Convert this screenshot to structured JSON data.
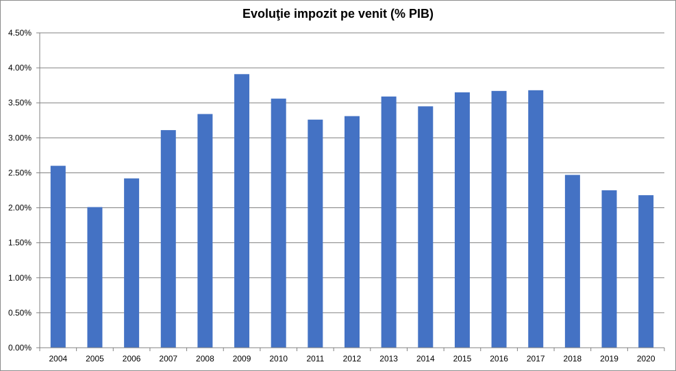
{
  "chart_data": {
    "type": "bar",
    "title": "Evoluţie impozit pe venit (% PIB)",
    "xlabel": "",
    "ylabel": "",
    "categories": [
      "2004",
      "2005",
      "2006",
      "2007",
      "2008",
      "2009",
      "2010",
      "2011",
      "2012",
      "2013",
      "2014",
      "2015",
      "2016",
      "2017",
      "2018",
      "2019",
      "2020"
    ],
    "series": [
      {
        "values": [
          2.6,
          2.01,
          2.42,
          3.11,
          3.34,
          3.91,
          3.56,
          3.26,
          3.31,
          3.59,
          3.45,
          3.65,
          3.67,
          3.68,
          2.47,
          2.25,
          2.18
        ]
      }
    ],
    "ylim": [
      0,
      4.5
    ],
    "y_ticks": [
      "0.00%",
      "0.50%",
      "1.00%",
      "1.50%",
      "2.00%",
      "2.50%",
      "3.00%",
      "3.50%",
      "4.00%",
      "4.50%"
    ],
    "grid": true,
    "legend": "none",
    "colors": {
      "bar": "#4472C4",
      "grid": "#808080",
      "axis": "#808080"
    }
  }
}
